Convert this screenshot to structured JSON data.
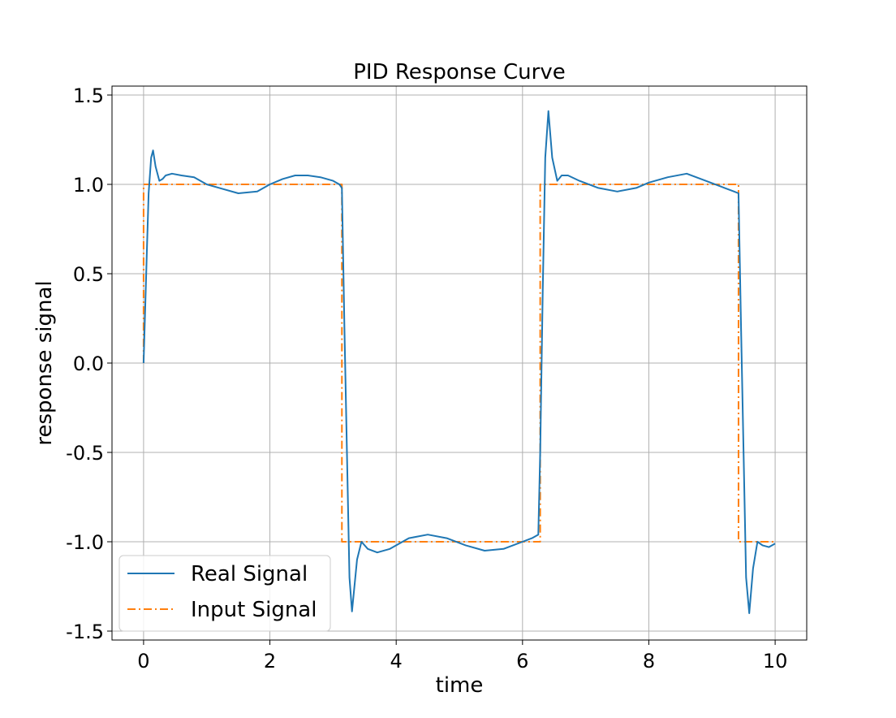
{
  "chart_data": {
    "type": "line",
    "title": "PID Response Curve",
    "xlabel": "time",
    "ylabel": "response signal",
    "xlim": [
      -0.5,
      10.5
    ],
    "ylim": [
      -1.55,
      1.55
    ],
    "xticks": [
      0,
      2,
      4,
      6,
      8,
      10
    ],
    "xtick_labels": [
      "0",
      "2",
      "4",
      "6",
      "8",
      "10"
    ],
    "yticks": [
      1.5,
      1.0,
      0.5,
      0.0,
      -0.5,
      -1.0,
      -1.5
    ],
    "ytick_labels": [
      "1.5",
      "1.0",
      "0.5",
      "0.0",
      "-0.5",
      "-1.0",
      "-1.5"
    ],
    "grid": true,
    "legend_position": "lower-left",
    "series": [
      {
        "name": "Real Signal",
        "color": "#1f77b4",
        "style": "solid",
        "x": [
          0,
          0.05,
          0.08,
          0.12,
          0.15,
          0.19,
          0.25,
          0.3,
          0.35,
          0.45,
          0.6,
          0.8,
          1.0,
          1.2,
          1.5,
          1.8,
          2.0,
          2.2,
          2.4,
          2.6,
          2.8,
          3.0,
          3.1,
          3.14,
          3.18,
          3.22,
          3.26,
          3.3,
          3.38,
          3.45,
          3.55,
          3.7,
          3.9,
          4.2,
          4.5,
          4.8,
          5.1,
          5.4,
          5.7,
          6.0,
          6.15,
          6.25,
          6.28,
          6.32,
          6.36,
          6.41,
          6.47,
          6.55,
          6.62,
          6.72,
          6.9,
          7.2,
          7.5,
          7.8,
          8.0,
          8.3,
          8.6,
          8.9,
          9.2,
          9.35,
          9.42,
          9.46,
          9.5,
          9.54,
          9.59,
          9.65,
          9.72,
          9.8,
          9.9,
          10.0
        ],
        "y": [
          0,
          0.6,
          0.95,
          1.15,
          1.19,
          1.1,
          1.02,
          1.03,
          1.05,
          1.06,
          1.05,
          1.04,
          1.0,
          0.98,
          0.95,
          0.96,
          1.0,
          1.03,
          1.05,
          1.05,
          1.04,
          1.02,
          1.0,
          0.98,
          0.2,
          -0.5,
          -1.2,
          -1.39,
          -1.1,
          -1.0,
          -1.04,
          -1.06,
          -1.04,
          -0.98,
          -0.96,
          -0.98,
          -1.02,
          -1.05,
          -1.04,
          -1.0,
          -0.98,
          -0.96,
          -0.5,
          0.4,
          1.15,
          1.41,
          1.15,
          1.02,
          1.05,
          1.05,
          1.02,
          0.98,
          0.96,
          0.98,
          1.01,
          1.04,
          1.06,
          1.02,
          0.98,
          0.96,
          0.95,
          0.2,
          -0.5,
          -1.2,
          -1.4,
          -1.15,
          -1.0,
          -1.02,
          -1.03,
          -1.01
        ]
      },
      {
        "name": "Input Signal",
        "color": "#ff7f0e",
        "style": "dashdot",
        "x": [
          0,
          0,
          3.14,
          3.14,
          6.28,
          6.28,
          9.42,
          9.42,
          10.0
        ],
        "y": [
          0,
          1,
          1,
          -1,
          -1,
          1,
          1,
          -1,
          -1
        ]
      }
    ]
  }
}
